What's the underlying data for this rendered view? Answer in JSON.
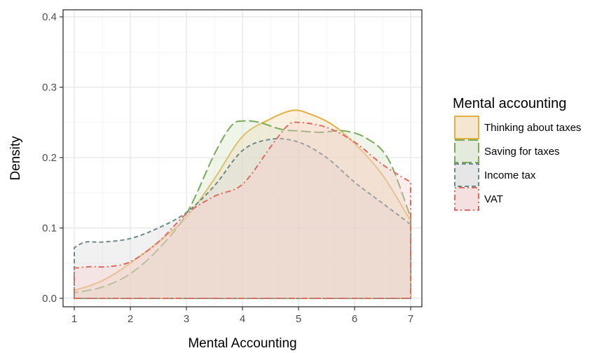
{
  "chart_data": {
    "type": "area",
    "xlabel": "Mental Accounting",
    "ylabel": "Density",
    "xlim": [
      0.8,
      7.2
    ],
    "ylim": [
      -0.012,
      0.41
    ],
    "x_ticks": [
      1,
      2,
      3,
      4,
      5,
      6,
      7
    ],
    "y_ticks": [
      0.0,
      0.1,
      0.2,
      0.3,
      0.4
    ],
    "y_tick_labels": [
      "0.0",
      "0.1",
      "0.2",
      "0.3",
      "0.4"
    ],
    "grid": true,
    "legend": {
      "title": "Mental accounting",
      "placement": "right"
    },
    "series": [
      {
        "name": "Thinking about taxes",
        "color": "#e0b040",
        "fill": "#f6d8a8",
        "dash": "solid",
        "x": [
          1.0,
          1.5,
          2.0,
          2.5,
          3.0,
          3.5,
          4.0,
          4.5,
          4.9,
          5.2,
          5.6,
          6.0,
          6.5,
          7.0
        ],
        "y": [
          0.011,
          0.025,
          0.05,
          0.08,
          0.115,
          0.17,
          0.23,
          0.255,
          0.267,
          0.262,
          0.247,
          0.22,
          0.175,
          0.11
        ]
      },
      {
        "name": "Saving for taxes",
        "color": "#7aaa5a",
        "fill": "#d4e3c2",
        "dash": "longdash",
        "x": [
          1.0,
          1.5,
          2.0,
          2.5,
          3.0,
          3.5,
          3.8,
          4.0,
          4.3,
          4.7,
          5.0,
          5.4,
          5.8,
          6.2,
          6.6,
          7.0
        ],
        "y": [
          0.008,
          0.016,
          0.035,
          0.07,
          0.12,
          0.205,
          0.245,
          0.252,
          0.25,
          0.24,
          0.238,
          0.236,
          0.238,
          0.228,
          0.198,
          0.115
        ]
      },
      {
        "name": "Income tax",
        "color": "#6c8a8a",
        "fill": "#d6d6d6",
        "dash": "dashed",
        "x": [
          1.0,
          1.2,
          1.5,
          2.0,
          2.5,
          3.0,
          3.5,
          4.0,
          4.5,
          5.0,
          5.5,
          6.0,
          6.5,
          7.0
        ],
        "y": [
          0.072,
          0.08,
          0.08,
          0.085,
          0.1,
          0.122,
          0.16,
          0.21,
          0.226,
          0.222,
          0.2,
          0.165,
          0.135,
          0.105
        ]
      },
      {
        "name": "VAT",
        "color": "#e06a60",
        "fill": "#f9caca",
        "dash": "dotdash",
        "x": [
          1.0,
          1.3,
          1.6,
          2.0,
          2.5,
          3.0,
          3.5,
          4.0,
          4.5,
          4.8,
          5.0,
          5.5,
          6.0,
          6.5,
          7.0
        ],
        "y": [
          0.043,
          0.045,
          0.045,
          0.052,
          0.08,
          0.12,
          0.145,
          0.162,
          0.215,
          0.245,
          0.25,
          0.243,
          0.222,
          0.19,
          0.165
        ]
      }
    ]
  }
}
